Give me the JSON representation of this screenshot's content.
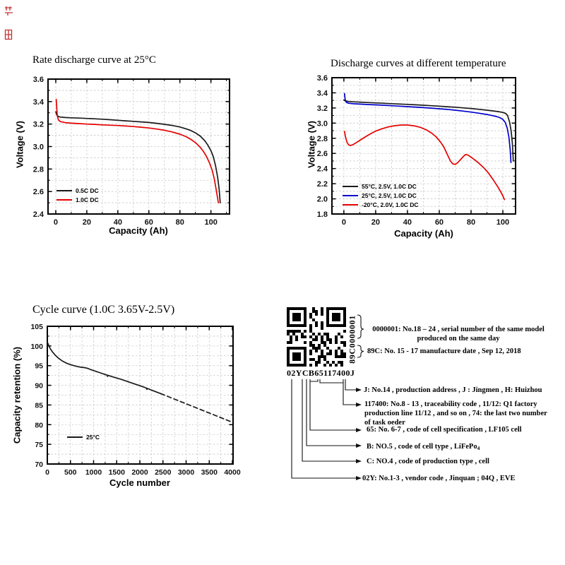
{
  "page": {
    "background": "#ffffff"
  },
  "decor": {
    "stamp_color": "#c53030"
  },
  "chart_data": [
    {
      "type": "line",
      "title": "Rate discharge curve at 25°C",
      "xlabel": "Capacity (Ah)",
      "ylabel": "Voltage (V)",
      "xlim": [
        -5,
        112
      ],
      "ylim": [
        2.4,
        3.6
      ],
      "xticks": {
        "v": [
          0,
          20,
          40,
          60,
          80,
          100
        ],
        "l": [
          "0",
          "20",
          "40",
          "60",
          "80",
          "100"
        ]
      },
      "yticks": {
        "v": [
          2.4,
          2.6,
          2.8,
          3.0,
          3.2,
          3.4,
          3.6
        ],
        "l": [
          "2.4",
          "2.6",
          "2.8",
          "3.0",
          "3.2",
          "3.4",
          "3.6"
        ]
      },
      "xminor": 10,
      "yminor": 0.1,
      "grid": true,
      "legend_position": "lower-left",
      "series": [
        {
          "name": "0.5C DC",
          "color": "#1a1a1a",
          "points": [
            [
              0,
              3.31
            ],
            [
              0.5,
              3.285
            ],
            [
              1.5,
              3.268
            ],
            [
              3,
              3.262
            ],
            [
              6,
              3.258
            ],
            [
              10,
              3.256
            ],
            [
              15,
              3.253
            ],
            [
              20,
              3.25
            ],
            [
              25,
              3.247
            ],
            [
              30,
              3.243
            ],
            [
              35,
              3.239
            ],
            [
              40,
              3.234
            ],
            [
              45,
              3.229
            ],
            [
              50,
              3.224
            ],
            [
              55,
              3.219
            ],
            [
              60,
              3.214
            ],
            [
              65,
              3.207
            ],
            [
              70,
              3.198
            ],
            [
              75,
              3.188
            ],
            [
              80,
              3.174
            ],
            [
              84,
              3.158
            ],
            [
              87,
              3.143
            ],
            [
              90,
              3.122
            ],
            [
              93,
              3.094
            ],
            [
              96,
              3.053
            ],
            [
              98,
              3.014
            ],
            [
              100,
              2.964
            ],
            [
              101.5,
              2.912
            ],
            [
              103,
              2.83
            ],
            [
              104.3,
              2.73
            ],
            [
              105.3,
              2.62
            ],
            [
              106,
              2.5
            ]
          ]
        },
        {
          "name": "1.0C DC",
          "color": "#e60000",
          "points": [
            [
              0.3,
              3.42
            ],
            [
              0.6,
              3.35
            ],
            [
              1,
              3.27
            ],
            [
              1.8,
              3.235
            ],
            [
              3,
              3.222
            ],
            [
              6,
              3.213
            ],
            [
              10,
              3.208
            ],
            [
              15,
              3.204
            ],
            [
              20,
              3.2
            ],
            [
              25,
              3.197
            ],
            [
              30,
              3.193
            ],
            [
              35,
              3.19
            ],
            [
              40,
              3.187
            ],
            [
              45,
              3.183
            ],
            [
              50,
              3.178
            ],
            [
              55,
              3.172
            ],
            [
              60,
              3.165
            ],
            [
              65,
              3.156
            ],
            [
              70,
              3.145
            ],
            [
              75,
              3.13
            ],
            [
              80,
              3.11
            ],
            [
              84,
              3.088
            ],
            [
              87,
              3.065
            ],
            [
              90,
              3.035
            ],
            [
              93,
              2.995
            ],
            [
              95,
              2.96
            ],
            [
              97,
              2.915
            ],
            [
              99,
              2.858
            ],
            [
              100.8,
              2.79
            ],
            [
              102.2,
              2.71
            ],
            [
              103.5,
              2.61
            ],
            [
              104.8,
              2.5
            ]
          ]
        }
      ]
    },
    {
      "type": "line",
      "title": "Discharge curves at different temperature",
      "xlabel": "Capacity (Ah)",
      "ylabel": "Voltage (V)",
      "xlim": [
        -7.5,
        108
      ],
      "ylim": [
        1.8,
        3.6
      ],
      "xticks": {
        "v": [
          0,
          20,
          40,
          60,
          80,
          100
        ],
        "l": [
          "0",
          "20",
          "40",
          "60",
          "80",
          "100"
        ]
      },
      "yticks": {
        "v": [
          1.8,
          2.0,
          2.2,
          2.4,
          2.6,
          2.8,
          3.0,
          3.2,
          3.4,
          3.6
        ],
        "l": [
          "1.8",
          "2.0",
          "2.2",
          "2.4",
          "2.6",
          "2.8",
          "3.0",
          "3.2",
          "3.4",
          "3.6"
        ]
      },
      "xminor": 10,
      "yminor": 0.1,
      "grid": true,
      "legend_position": "lower-left",
      "series": [
        {
          "name": "55°C, 2.5V, 1.0C DC",
          "color": "#1a1a1a",
          "points": [
            [
              0,
              3.305
            ],
            [
              1,
              3.292
            ],
            [
              3,
              3.286
            ],
            [
              6,
              3.281
            ],
            [
              10,
              3.277
            ],
            [
              15,
              3.272
            ],
            [
              20,
              3.267
            ],
            [
              25,
              3.262
            ],
            [
              30,
              3.257
            ],
            [
              35,
              3.252
            ],
            [
              40,
              3.247
            ],
            [
              45,
              3.242
            ],
            [
              50,
              3.236
            ],
            [
              55,
              3.23
            ],
            [
              60,
              3.224
            ],
            [
              65,
              3.217
            ],
            [
              70,
              3.21
            ],
            [
              75,
              3.202
            ],
            [
              80,
              3.193
            ],
            [
              85,
              3.182
            ],
            [
              90,
              3.171
            ],
            [
              94,
              3.161
            ],
            [
              97,
              3.152
            ],
            [
              100,
              3.141
            ],
            [
              101.8,
              3.128
            ],
            [
              103,
              3.1
            ],
            [
              104.2,
              3.02
            ],
            [
              105.2,
              2.9
            ],
            [
              106,
              2.73
            ],
            [
              106.6,
              2.5
            ]
          ]
        },
        {
          "name": "25°C, 2.5V, 1.0C DC",
          "color": "#0000cd",
          "points": [
            [
              0.4,
              3.39
            ],
            [
              0.8,
              3.31
            ],
            [
              1.5,
              3.275
            ],
            [
              3,
              3.262
            ],
            [
              6,
              3.256
            ],
            [
              10,
              3.251
            ],
            [
              15,
              3.246
            ],
            [
              20,
              3.241
            ],
            [
              25,
              3.236
            ],
            [
              30,
              3.23
            ],
            [
              35,
              3.224
            ],
            [
              40,
              3.218
            ],
            [
              45,
              3.212
            ],
            [
              50,
              3.205
            ],
            [
              55,
              3.198
            ],
            [
              60,
              3.19
            ],
            [
              65,
              3.181
            ],
            [
              70,
              3.171
            ],
            [
              75,
              3.159
            ],
            [
              80,
              3.146
            ],
            [
              85,
              3.131
            ],
            [
              90,
              3.114
            ],
            [
              93,
              3.102
            ],
            [
              96,
              3.087
            ],
            [
              98,
              3.073
            ],
            [
              100,
              3.05
            ],
            [
              101.5,
              3.01
            ],
            [
              102.8,
              2.93
            ],
            [
              103.8,
              2.82
            ],
            [
              104.6,
              2.66
            ],
            [
              105.1,
              2.48
            ]
          ]
        },
        {
          "name": "-20°C, 2.0V, 1.0C DC",
          "color": "#e60000",
          "points": [
            [
              0.4,
              2.89
            ],
            [
              1,
              2.82
            ],
            [
              2,
              2.745
            ],
            [
              3,
              2.713
            ],
            [
              4,
              2.705
            ],
            [
              5.5,
              2.713
            ],
            [
              8,
              2.745
            ],
            [
              11,
              2.785
            ],
            [
              14,
              2.825
            ],
            [
              17,
              2.862
            ],
            [
              20,
              2.895
            ],
            [
              24,
              2.926
            ],
            [
              28,
              2.95
            ],
            [
              32,
              2.966
            ],
            [
              36,
              2.975
            ],
            [
              40,
              2.975
            ],
            [
              44,
              2.965
            ],
            [
              48,
              2.945
            ],
            [
              52,
              2.91
            ],
            [
              55,
              2.872
            ],
            [
              58,
              2.82
            ],
            [
              61,
              2.745
            ],
            [
              63,
              2.68
            ],
            [
              65,
              2.59
            ],
            [
              67,
              2.5
            ],
            [
              68.5,
              2.462
            ],
            [
              70,
              2.455
            ],
            [
              71.5,
              2.475
            ],
            [
              73,
              2.51
            ],
            [
              75,
              2.555
            ],
            [
              76.5,
              2.585
            ],
            [
              78,
              2.58
            ],
            [
              80,
              2.55
            ],
            [
              82,
              2.52
            ],
            [
              85,
              2.47
            ],
            [
              88,
              2.41
            ],
            [
              91,
              2.34
            ],
            [
              94,
              2.25
            ],
            [
              96.5,
              2.17
            ],
            [
              98.5,
              2.1
            ],
            [
              100,
              2.04
            ],
            [
              101,
              1.99
            ]
          ]
        }
      ]
    },
    {
      "type": "line",
      "title": "Cycle curve (1.0C 3.65V-2.5V)",
      "xlabel": "Cycle number",
      "ylabel": "Capacity retention (%)",
      "xlim": [
        0,
        4015
      ],
      "ylim": [
        70,
        105
      ],
      "xticks": {
        "v": [
          0,
          500,
          1000,
          1500,
          2000,
          2500,
          3000,
          3500,
          4000
        ],
        "l": [
          "0",
          "500",
          "1000",
          "1500",
          "2000",
          "2500",
          "3000",
          "3500",
          "4000"
        ]
      },
      "yticks": {
        "v": [
          70,
          75,
          80,
          85,
          90,
          95,
          100,
          105
        ],
        "l": [
          "70",
          "75",
          "80",
          "85",
          "90",
          "95",
          "100",
          "105"
        ]
      },
      "xminor": 250,
      "yminor": 2.5,
      "grid": true,
      "legend_position": "lower-left",
      "series": [
        {
          "name": "25°C",
          "color": "#1a1a1a",
          "points": [
            [
              0,
              101
            ],
            [
              25,
              100.3
            ],
            [
              60,
              99.4
            ],
            [
              110,
              98.5
            ],
            [
              170,
              97.7
            ],
            [
              240,
              96.9
            ],
            [
              320,
              96.2
            ],
            [
              400,
              95.7
            ],
            [
              480,
              95.35
            ],
            [
              560,
              95.05
            ],
            [
              640,
              94.8
            ],
            [
              720,
              94.6
            ],
            [
              800,
              94.5
            ],
            [
              860,
              94.35
            ],
            [
              950,
              93.95
            ],
            [
              1050,
              93.55
            ],
            [
              1150,
              93.15
            ],
            [
              1250,
              92.75
            ],
            [
              1290,
              92.6
            ],
            [
              1302,
              92.25
            ],
            [
              1315,
              92.55
            ],
            [
              1400,
              92.2
            ],
            [
              1500,
              91.85
            ],
            [
              1600,
              91.5
            ],
            [
              1700,
              91.1
            ],
            [
              1800,
              90.7
            ],
            [
              1900,
              90.3
            ],
            [
              2000,
              89.9
            ],
            [
              2100,
              89.5
            ],
            [
              2140,
              89.3
            ],
            [
              2152,
              88.95
            ],
            [
              2165,
              89.2
            ],
            [
              2250,
              88.8
            ],
            [
              2350,
              88.35
            ],
            [
              2450,
              87.9
            ]
          ]
        },
        {
          "name": "",
          "color": "#1a1a1a",
          "dash": "6,4",
          "points": [
            [
              2450,
              87.9
            ],
            [
              4000,
              80.6
            ]
          ]
        }
      ]
    }
  ],
  "qr_section": {
    "code": "02YCB65117400J",
    "vertical_code": "89C0000001",
    "annotations": {
      "serial": "0000001: No.18 – 24 , serial number of  the same model\nproduced on the same day",
      "date": "89C: No. 15 - 17 manufacture date , Sep 12, 2018",
      "address": "J: No.14 , production  address , J : Jingmen , H: Huizhou",
      "trace": "117400: No.8 - 13 , traceability  code , 11/12: Q1 factory\nproduction line 11/12 , and so on , 74: the last two number\nof task oeder",
      "spec": "65: No. 6-7 , code of cell specification , LF105 cell",
      "cell_type_main": "B: NO.5 , code of cell type , LiFePo",
      "cell_type_sub": "4",
      "production_type": "C: NO.4 , code of production type , cell",
      "vendor": "02Y: No.1-3 , vendor code , Jinquan ; 04Q , EVE"
    }
  }
}
